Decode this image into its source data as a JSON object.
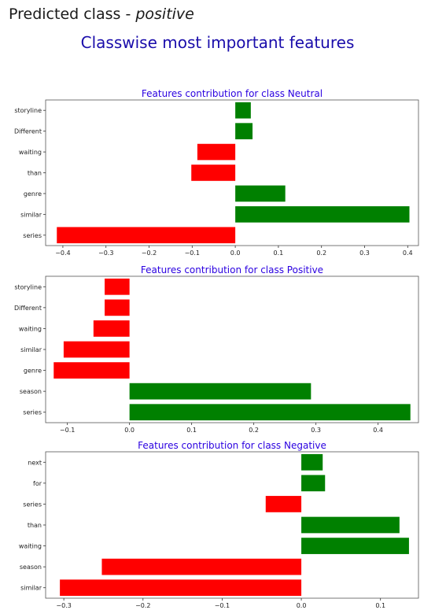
{
  "header": {
    "prediction_prefix": "Predicted class - ",
    "prediction_value": "positive",
    "title": "Classwise most important features"
  },
  "colors": {
    "positive": "#008000",
    "negative": "#ff0000",
    "title": "#2a00e0"
  },
  "chart_data": [
    {
      "type": "bar",
      "orientation": "horizontal",
      "title": "Features contribution for class Neutral",
      "categories": [
        "storyline",
        "Different",
        "waiting",
        "than",
        "genre",
        "similar",
        "series"
      ],
      "values": [
        0.036,
        0.04,
        -0.088,
        -0.102,
        0.116,
        0.404,
        -0.414
      ],
      "xlim": [
        -0.44,
        0.425
      ],
      "xticks": [
        -0.4,
        -0.3,
        -0.2,
        -0.1,
        0.0,
        0.1,
        0.2,
        0.3,
        0.4
      ],
      "xtick_labels": [
        "−0.4",
        "−0.3",
        "−0.2",
        "−0.1",
        "0.0",
        "0.1",
        "0.2",
        "0.3",
        "0.4"
      ]
    },
    {
      "type": "bar",
      "orientation": "horizontal",
      "title": "Features contribution for class Positive",
      "categories": [
        "storyline",
        "Different",
        "waiting",
        "similar",
        "genre",
        "season",
        "series"
      ],
      "values": [
        -0.04,
        -0.04,
        -0.058,
        -0.106,
        -0.122,
        0.292,
        0.452
      ],
      "xlim": [
        -0.135,
        0.465
      ],
      "xticks": [
        -0.1,
        0.0,
        0.1,
        0.2,
        0.3,
        0.4
      ],
      "xtick_labels": [
        "−0.1",
        "0.0",
        "0.1",
        "0.2",
        "0.3",
        "0.4"
      ]
    },
    {
      "type": "bar",
      "orientation": "horizontal",
      "title": "Features contribution for class Negative",
      "categories": [
        "next",
        "for",
        "series",
        "than",
        "waiting",
        "season",
        "similar"
      ],
      "values": [
        0.027,
        0.03,
        -0.045,
        0.124,
        0.136,
        -0.252,
        -0.305
      ],
      "xlim": [
        -0.323,
        0.148
      ],
      "xticks": [
        -0.3,
        -0.2,
        -0.1,
        0.0,
        0.1
      ],
      "xtick_labels": [
        "−0.3",
        "−0.2",
        "−0.1",
        "0.0",
        "0.1"
      ]
    }
  ]
}
